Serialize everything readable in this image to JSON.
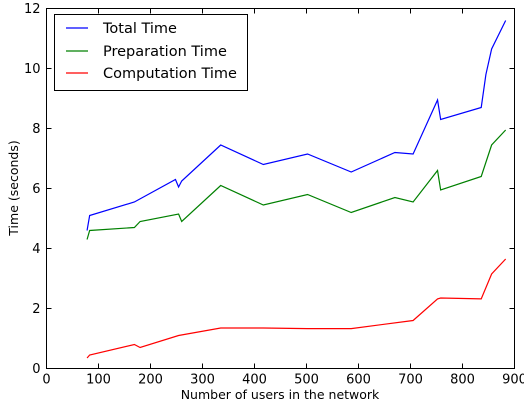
{
  "chart_data": {
    "type": "line",
    "title": "",
    "xlabel": "Number of users in the network",
    "ylabel": "Time (seconds)",
    "xlim": [
      0,
      900
    ],
    "ylim": [
      0,
      12
    ],
    "xticks": [
      0,
      100,
      200,
      300,
      400,
      500,
      600,
      700,
      800,
      900
    ],
    "yticks": [
      0,
      2,
      4,
      6,
      8,
      10,
      12
    ],
    "grid": false,
    "legend_position": "top-left",
    "series": [
      {
        "name": "Total Time",
        "color": "#0000ff",
        "x": [
          78,
          83,
          169,
          248,
          254,
          260,
          335,
          417,
          502,
          586,
          670,
          705,
          752,
          758,
          836,
          845,
          856,
          883
        ],
        "y": [
          4.6,
          5.1,
          5.55,
          6.3,
          6.05,
          6.25,
          7.45,
          6.8,
          7.15,
          6.55,
          7.2,
          7.15,
          8.95,
          8.3,
          8.7,
          9.8,
          10.65,
          11.6
        ]
      },
      {
        "name": "Preparation Time",
        "color": "#008000",
        "x": [
          78,
          83,
          169,
          180,
          254,
          260,
          335,
          417,
          502,
          586,
          670,
          705,
          752,
          758,
          836,
          856,
          883
        ],
        "y": [
          4.3,
          4.6,
          4.7,
          4.9,
          5.15,
          4.9,
          6.1,
          5.45,
          5.8,
          5.2,
          5.7,
          5.55,
          6.6,
          5.95,
          6.4,
          7.45,
          7.95
        ]
      },
      {
        "name": "Computation Time",
        "color": "#ff0000",
        "x": [
          78,
          83,
          169,
          180,
          254,
          335,
          417,
          502,
          586,
          705,
          752,
          758,
          836,
          856,
          883
        ],
        "y": [
          0.35,
          0.45,
          0.8,
          0.7,
          1.1,
          1.35,
          1.35,
          1.33,
          1.33,
          1.6,
          2.32,
          2.35,
          2.32,
          3.15,
          3.65
        ]
      }
    ]
  }
}
